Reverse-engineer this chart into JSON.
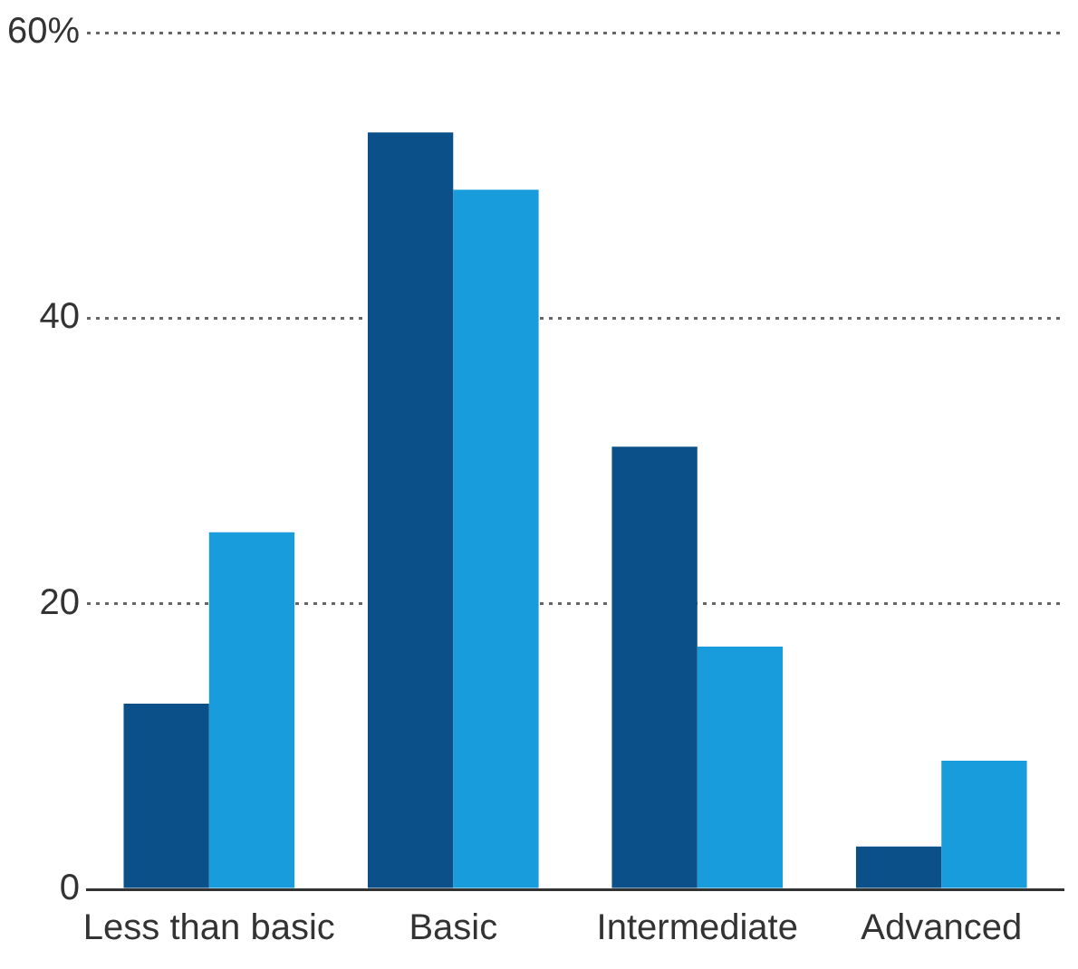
{
  "chart_data": {
    "type": "bar",
    "categories": [
      "Less than basic",
      "Basic",
      "Intermediate",
      "Advanced"
    ],
    "series": [
      {
        "color": "#0b5088",
        "values": [
          13,
          53,
          31,
          3
        ]
      },
      {
        "color": "#199cdb",
        "values": [
          25,
          49,
          17,
          9
        ]
      }
    ],
    "ylim": [
      0,
      60
    ],
    "yticks": [
      0,
      20,
      40,
      {
        "value": 60,
        "label": "60%"
      }
    ],
    "grid": "y",
    "legend": false
  }
}
